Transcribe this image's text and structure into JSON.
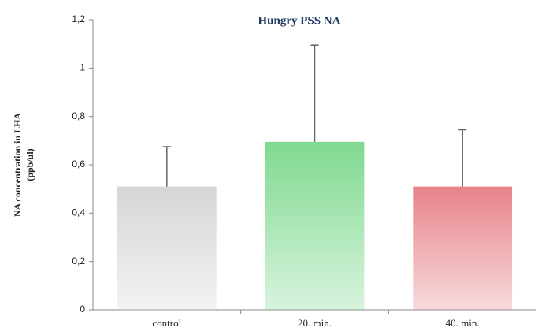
{
  "chart_data": {
    "type": "bar",
    "title": "Hungry PSS NA",
    "ylabel": [
      "NA concentration in LHA",
      "(ppb/ul)"
    ],
    "categories": [
      "control",
      "20. min.",
      "40. min."
    ],
    "values": [
      0.51,
      0.695,
      0.51
    ],
    "errors": [
      0.165,
      0.4,
      0.235
    ],
    "colors": [
      "#d6d6d6",
      "#7fd98f",
      "#e8838a"
    ],
    "error_color": "#5b6673",
    "ylim": [
      0,
      1.2
    ],
    "yticks": [
      0,
      {
        "value": 0.2,
        "label": "0,2"
      },
      {
        "value": 0.4,
        "label": "0,4"
      },
      {
        "value": 0.6,
        "label": "0,6"
      },
      {
        "value": 0.8,
        "label": "0,8"
      },
      1,
      {
        "value": 1.2,
        "label": "1,2"
      }
    ]
  }
}
